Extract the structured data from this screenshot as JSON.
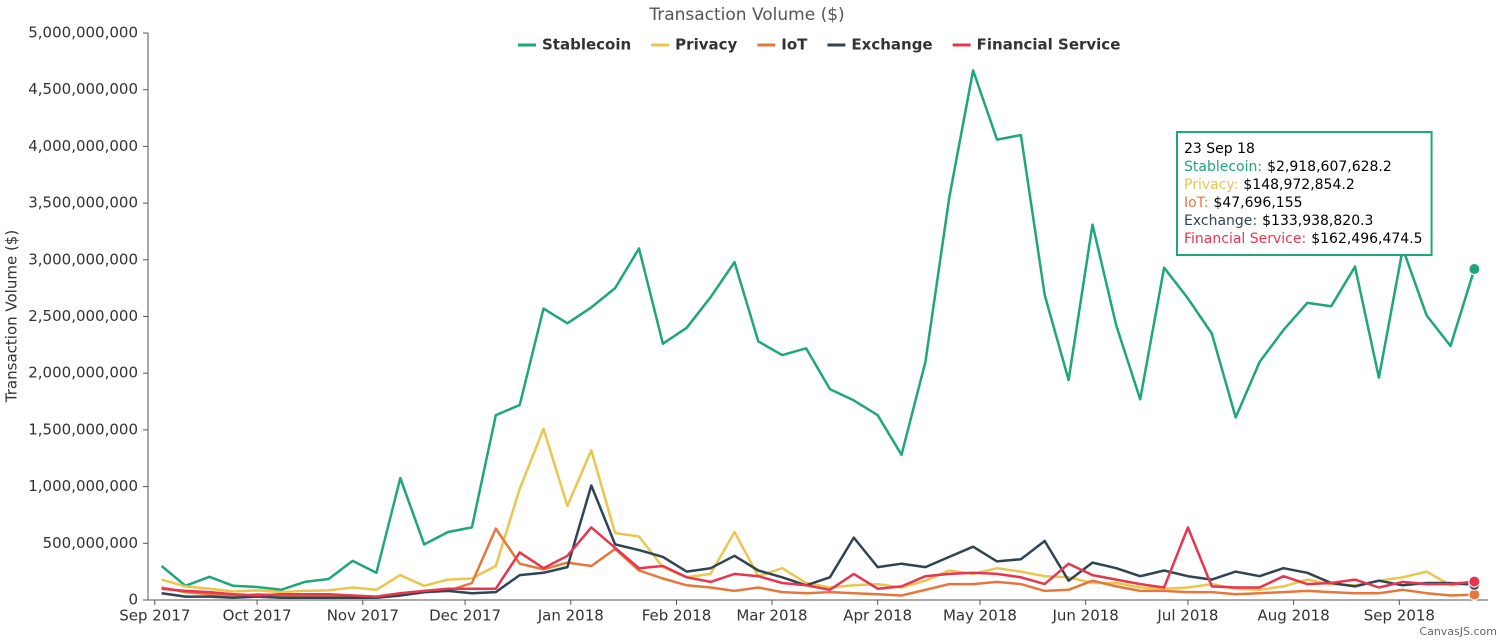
{
  "chart_data": {
    "type": "line",
    "title": "Transaction Volume ($)",
    "y_label": "Transaction Volume ($)",
    "credit": "CanvasJS.com",
    "x": [
      "2017-09-03",
      "2017-09-10",
      "2017-09-17",
      "2017-09-24",
      "2017-10-01",
      "2017-10-08",
      "2017-10-15",
      "2017-10-22",
      "2017-10-29",
      "2017-11-05",
      "2017-11-12",
      "2017-11-19",
      "2017-11-26",
      "2017-12-03",
      "2017-12-10",
      "2017-12-17",
      "2017-12-24",
      "2017-12-31",
      "2018-01-07",
      "2018-01-14",
      "2018-01-21",
      "2018-01-28",
      "2018-02-04",
      "2018-02-11",
      "2018-02-18",
      "2018-02-25",
      "2018-03-04",
      "2018-03-11",
      "2018-03-18",
      "2018-03-25",
      "2018-04-01",
      "2018-04-08",
      "2018-04-15",
      "2018-04-22",
      "2018-04-29",
      "2018-05-06",
      "2018-05-13",
      "2018-05-20",
      "2018-05-27",
      "2018-06-03",
      "2018-06-10",
      "2018-06-17",
      "2018-06-24",
      "2018-07-01",
      "2018-07-08",
      "2018-07-15",
      "2018-07-22",
      "2018-07-29",
      "2018-08-05",
      "2018-08-12",
      "2018-08-19",
      "2018-08-26",
      "2018-09-02",
      "2018-09-09",
      "2018-09-16",
      "2018-09-23"
    ],
    "xlim": [
      "2017-08-30",
      "2018-09-27"
    ],
    "xticks": [
      {
        "value": "2017-09-01",
        "label": "Sep 2017"
      },
      {
        "value": "2017-10-01",
        "label": "Oct 2017"
      },
      {
        "value": "2017-11-01",
        "label": "Nov 2017"
      },
      {
        "value": "2017-12-01",
        "label": "Dec 2017"
      },
      {
        "value": "2018-01-01",
        "label": "Jan 2018"
      },
      {
        "value": "2018-02-01",
        "label": "Feb 2018"
      },
      {
        "value": "2018-03-01",
        "label": "Mar 2018"
      },
      {
        "value": "2018-04-01",
        "label": "Apr 2018"
      },
      {
        "value": "2018-05-01",
        "label": "May 2018"
      },
      {
        "value": "2018-06-01",
        "label": "Jun 2018"
      },
      {
        "value": "2018-07-01",
        "label": "Jul 2018"
      },
      {
        "value": "2018-08-01",
        "label": "Aug 2018"
      },
      {
        "value": "2018-09-01",
        "label": "Sep 2018"
      }
    ],
    "ylim": [
      0,
      5000000000
    ],
    "yticks": [
      0,
      {
        "value": 500000000,
        "label": "500,000,000"
      },
      {
        "value": 1000000000,
        "label": "1,000,000,000"
      },
      {
        "value": 1500000000,
        "label": "1,500,000,000"
      },
      {
        "value": 2000000000,
        "label": "2,000,000,000"
      },
      {
        "value": 2500000000,
        "label": "2,500,000,000"
      },
      {
        "value": 3000000000,
        "label": "3,000,000,000"
      },
      {
        "value": 3500000000,
        "label": "3,500,000,000"
      },
      {
        "value": 4000000000,
        "label": "4,000,000,000"
      },
      {
        "value": 4500000000,
        "label": "4,500,000,000"
      },
      {
        "value": 5000000000,
        "label": "5,000,000,000"
      }
    ],
    "grid": false,
    "legend": "top",
    "series": [
      {
        "name": "Stablecoin",
        "color": "#1fa67a",
        "values": [
          300000000,
          125000000,
          205000000,
          125000000,
          115000000,
          90000000,
          160000000,
          185000000,
          345000000,
          240000000,
          1075000000,
          490000000,
          600000000,
          640000000,
          1630000000,
          1720000000,
          2570000000,
          2440000000,
          2580000000,
          2750000000,
          3100000000,
          2260000000,
          2400000000,
          2670000000,
          2980000000,
          2280000000,
          2160000000,
          2220000000,
          1860000000,
          1760000000,
          1630000000,
          1280000000,
          2100000000,
          3550000000,
          4670000000,
          4060000000,
          4100000000,
          2690000000,
          1940000000,
          3310000000,
          2420000000,
          1770000000,
          2930000000,
          2660000000,
          2350000000,
          1610000000,
          2100000000,
          2380000000,
          2620000000,
          2590000000,
          2940000000,
          1960000000,
          3100000000,
          2510000000,
          2240000000,
          2918607628.2
        ]
      },
      {
        "name": "Privacy",
        "color": "#ebc64f",
        "values": [
          180000000,
          120000000,
          100000000,
          75000000,
          85000000,
          70000000,
          80000000,
          85000000,
          110000000,
          90000000,
          220000000,
          125000000,
          180000000,
          190000000,
          300000000,
          980000000,
          1510000000,
          830000000,
          1320000000,
          590000000,
          560000000,
          290000000,
          200000000,
          230000000,
          600000000,
          210000000,
          280000000,
          150000000,
          110000000,
          130000000,
          140000000,
          110000000,
          170000000,
          260000000,
          230000000,
          280000000,
          250000000,
          210000000,
          200000000,
          150000000,
          150000000,
          110000000,
          100000000,
          110000000,
          140000000,
          100000000,
          90000000,
          120000000,
          180000000,
          140000000,
          130000000,
          170000000,
          200000000,
          250000000,
          130000000,
          148972854.2
        ]
      },
      {
        "name": "IoT",
        "color": "#e5773b",
        "values": [
          110000000,
          70000000,
          50000000,
          30000000,
          50000000,
          40000000,
          30000000,
          30000000,
          30000000,
          20000000,
          40000000,
          70000000,
          80000000,
          150000000,
          630000000,
          320000000,
          270000000,
          330000000,
          300000000,
          450000000,
          260000000,
          190000000,
          130000000,
          110000000,
          80000000,
          110000000,
          70000000,
          60000000,
          70000000,
          60000000,
          50000000,
          40000000,
          90000000,
          140000000,
          140000000,
          160000000,
          140000000,
          80000000,
          90000000,
          170000000,
          120000000,
          80000000,
          80000000,
          70000000,
          70000000,
          50000000,
          60000000,
          70000000,
          80000000,
          70000000,
          60000000,
          60000000,
          90000000,
          60000000,
          40000000,
          47696155
        ]
      },
      {
        "name": "Exchange",
        "color": "#2f4554",
        "values": [
          60000000,
          30000000,
          30000000,
          20000000,
          30000000,
          20000000,
          20000000,
          20000000,
          20000000,
          20000000,
          40000000,
          70000000,
          80000000,
          60000000,
          70000000,
          220000000,
          240000000,
          290000000,
          1010000000,
          490000000,
          440000000,
          380000000,
          250000000,
          280000000,
          390000000,
          260000000,
          200000000,
          130000000,
          200000000,
          550000000,
          290000000,
          320000000,
          290000000,
          380000000,
          470000000,
          340000000,
          360000000,
          520000000,
          170000000,
          330000000,
          280000000,
          210000000,
          260000000,
          210000000,
          180000000,
          250000000,
          210000000,
          280000000,
          240000000,
          150000000,
          120000000,
          170000000,
          130000000,
          150000000,
          150000000,
          133938820.3
        ]
      },
      {
        "name": "Financial Service",
        "color": "#e8364f",
        "values": [
          100000000,
          80000000,
          70000000,
          50000000,
          40000000,
          50000000,
          50000000,
          50000000,
          40000000,
          30000000,
          60000000,
          80000000,
          100000000,
          100000000,
          100000000,
          420000000,
          280000000,
          390000000,
          640000000,
          460000000,
          280000000,
          300000000,
          200000000,
          160000000,
          230000000,
          210000000,
          150000000,
          130000000,
          90000000,
          230000000,
          100000000,
          120000000,
          210000000,
          230000000,
          240000000,
          230000000,
          200000000,
          140000000,
          320000000,
          220000000,
          180000000,
          140000000,
          110000000,
          640000000,
          120000000,
          110000000,
          110000000,
          210000000,
          140000000,
          150000000,
          180000000,
          110000000,
          160000000,
          140000000,
          140000000,
          162496474.5
        ]
      }
    ],
    "tooltip": {
      "title": "23 Sep 18",
      "labels": [
        "Stablecoin:",
        "Privacy:",
        "IoT:",
        "Exchange:",
        "Financial Service:"
      ],
      "values": [
        "$2,918,607,628.2",
        "$148,972,854.2",
        "$47,696,155",
        "$133,938,820.3",
        "$162,496,474.5"
      ]
    }
  }
}
